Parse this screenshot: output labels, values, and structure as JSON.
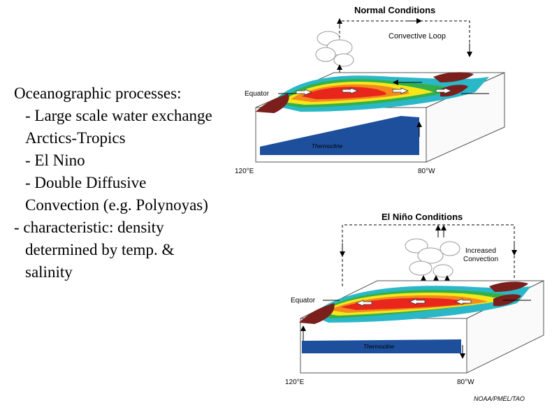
{
  "slide": {
    "bullets": [
      "Oceanographic processes:",
      "-  Large scale water exchange Arctics-Tropics",
      "-  El Nino",
      "-  Double Diffusive Convection (e.g. Polynoyas)",
      "-  characteristic: density determined by temp. & salinity"
    ]
  },
  "figure_top": {
    "title": "Normal Conditions",
    "loop_label": "Convective Loop",
    "equator_label": "Equator",
    "thermocline_label": "Thermocline",
    "lon_left": "120°E",
    "lon_right": "80°W"
  },
  "figure_bottom": {
    "title": "El Niño Conditions",
    "convection_label_1": "Increased",
    "convection_label_2": "Convection",
    "equator_label": "Equator",
    "thermocline_label": "Thermocline",
    "lon_left": "120°E",
    "lon_right": "80°W"
  },
  "credit": "NOAA/PMEL/TAO",
  "colors": {
    "warm_core": "#e8261c",
    "orange": "#f28a1e",
    "yellow": "#f7e61a",
    "green": "#33b04a",
    "cyan": "#2ab8c8",
    "deep_blue": "#1d4f9c",
    "land": "#7a1f1c"
  }
}
